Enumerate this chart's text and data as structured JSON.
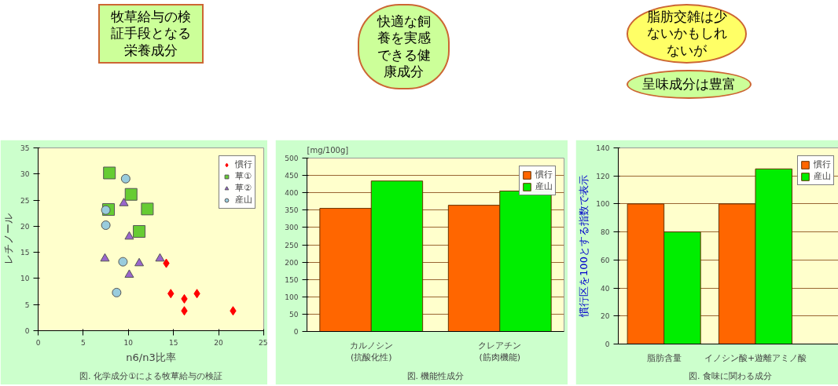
{
  "chart_data": [
    {
      "type": "scatter",
      "xlabel": "n6/n3比率",
      "ylabel": "レチノール",
      "xlim": [
        0,
        25
      ],
      "ylim": [
        0,
        35
      ],
      "xticks": [
        0,
        5,
        10,
        15,
        20,
        25
      ],
      "yticks": [
        0,
        5,
        10,
        15,
        20,
        25,
        30,
        35
      ],
      "grid": false,
      "legend": "top right",
      "series": [
        {
          "name": "慣行",
          "color": "#ff0000",
          "marker": "diamond",
          "x": [
            14.2,
            14.7,
            16.2,
            16.2,
            17.6,
            21.6
          ],
          "values": [
            12.9,
            7.1,
            6.1,
            3.8,
            7.1,
            3.8
          ]
        },
        {
          "name": "草①",
          "color": "#66cc33",
          "marker": "square",
          "x": [
            7.9,
            10.3,
            12.1,
            11.2,
            7.8
          ],
          "values": [
            30.2,
            26.1,
            23.3,
            19.0,
            23.2
          ]
        },
        {
          "name": "草②",
          "color": "#9966cc",
          "marker": "triangle",
          "x": [
            9.5,
            10.1,
            7.4,
            11.2,
            10.1,
            13.5
          ],
          "values": [
            24.4,
            18.0,
            13.8,
            12.9,
            10.7,
            13.8
          ]
        },
        {
          "name": "産山",
          "color": "#99ccdd",
          "marker": "circle",
          "x": [
            9.7,
            7.5,
            7.5,
            9.4,
            8.7
          ],
          "values": [
            29.1,
            23.1,
            20.2,
            13.2,
            7.3
          ]
        }
      ],
      "annotations": [
        "図. 化学成分①による牧草給与の検証",
        "牧草給与の検証手段となる栄養成分"
      ]
    },
    {
      "type": "bar",
      "categories": [
        "カルノシン\n(抗酸化性)",
        "クレアチン\n(筋肉機能)"
      ],
      "ylabel": "[mg/100g]",
      "ylim": [
        0,
        500
      ],
      "yticks": [
        0,
        50,
        100,
        150,
        200,
        250,
        300,
        350,
        400,
        450,
        500
      ],
      "grid": "y",
      "legend": "top right",
      "series": [
        {
          "name": "慣行",
          "color": "#ff6600",
          "values": [
            355,
            364
          ]
        },
        {
          "name": "産山",
          "color": "#00ee00",
          "values": [
            434,
            405
          ]
        }
      ],
      "annotations": [
        "図. 機能性成分",
        "快適な飼養を実感できる健康成分"
      ]
    },
    {
      "type": "bar",
      "categories": [
        "脂肪含量",
        "イノシン酸+遊離アミノ酸"
      ],
      "ylabel": "慣行区を100とする指数で表示",
      "ylim": [
        0,
        140
      ],
      "yticks": [
        0,
        20,
        40,
        60,
        80,
        100,
        120,
        140
      ],
      "grid": "y",
      "legend": "top right",
      "series": [
        {
          "name": "慣行",
          "color": "#ff6600",
          "values": [
            100,
            100
          ]
        },
        {
          "name": "産山",
          "color": "#00ee00",
          "values": [
            80,
            125
          ]
        }
      ],
      "annotations": [
        "図. 食味に関わる成分",
        "脂肪交雑は少ないかもしれないが",
        "呈味成分は豊富"
      ]
    }
  ]
}
